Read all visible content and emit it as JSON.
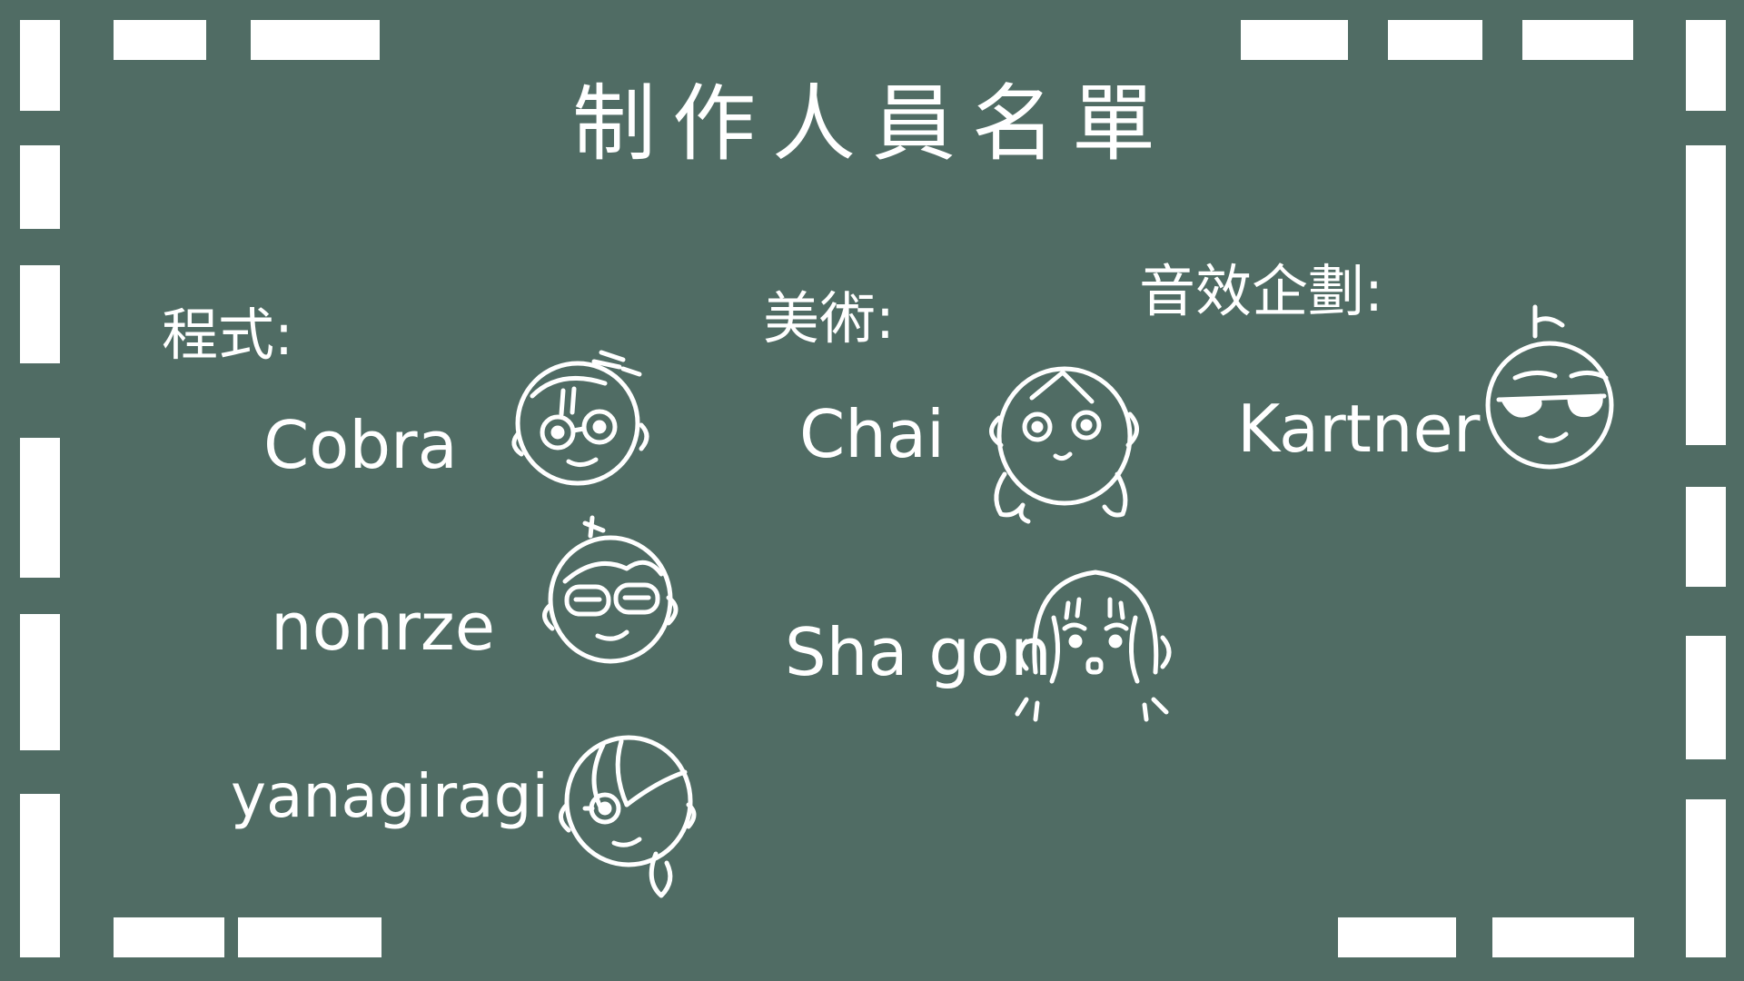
{
  "title": "制作人員名單",
  "sections": {
    "programming": {
      "label": "程式:",
      "members": [
        "Cobra",
        "nonrze",
        "yanagiragi"
      ]
    },
    "art": {
      "label": "美術:",
      "members": [
        "Chai",
        "Sha gon"
      ]
    },
    "sound_design": {
      "label": "音效企劃:",
      "members": [
        "Kartner"
      ]
    }
  },
  "avatars": {
    "cobra": "glasses-boy-face-icon",
    "nonrze": "glasses-smile-face-icon",
    "yanagiragi": "side-bang-face-icon",
    "chai": "girl-face-icon",
    "shagon": "long-hair-face-icon",
    "kartner": "sunglasses-face-icon"
  },
  "colors": {
    "board": "#506c64",
    "chalk": "#ffffff"
  }
}
